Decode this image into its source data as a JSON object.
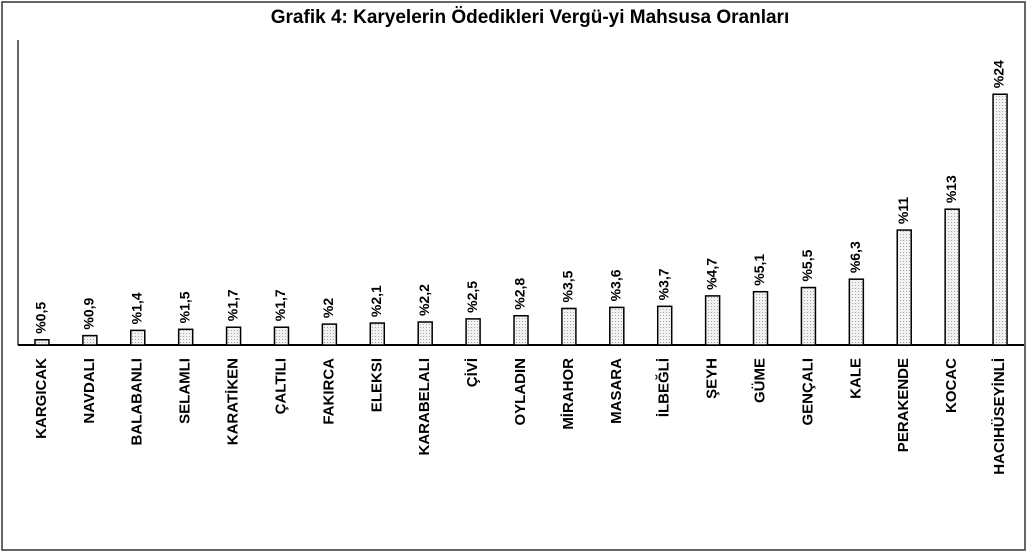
{
  "chart_data": {
    "type": "bar",
    "title": "Grafik 4: Karyelerin Ödedikleri Vergü-yi Mahsusa Oranları",
    "categories": [
      "KARGICAK",
      "NAVDALI",
      "BALABANLI",
      "SELAMLI",
      "KARATİKEN",
      "ÇALTILI",
      "FAKIRCA",
      "ELEKSI",
      "KARABELALI",
      "ÇİVİ",
      "OYLADIN",
      "MİRAHOR",
      "MASARA",
      "İLBEĞLİ",
      "ŞEYH",
      "GÜME",
      "GENÇALI",
      "KALE",
      "PERAKENDE",
      "KOCAC",
      "HACIHÜSEYİNLİ"
    ],
    "values": [
      0.5,
      0.9,
      1.4,
      1.5,
      1.7,
      1.7,
      2,
      2.1,
      2.2,
      2.5,
      2.8,
      3.5,
      3.6,
      3.7,
      4.7,
      5.1,
      5.5,
      6.3,
      11,
      13,
      24
    ],
    "value_labels": [
      "%0,5",
      "%0,9",
      "%1,4",
      "%1,5",
      "%1,7",
      "%1,7",
      "%2",
      "%2,1",
      "%2,2",
      "%2,5",
      "%2,8",
      "%3,5",
      "%3,6",
      "%3,7",
      "%4,7",
      "%5,1",
      "%5,5",
      "%6,3",
      "%11",
      "%13",
      "%24"
    ],
    "color": "#e4e4e4",
    "ylim": [
      0,
      29
    ]
  }
}
